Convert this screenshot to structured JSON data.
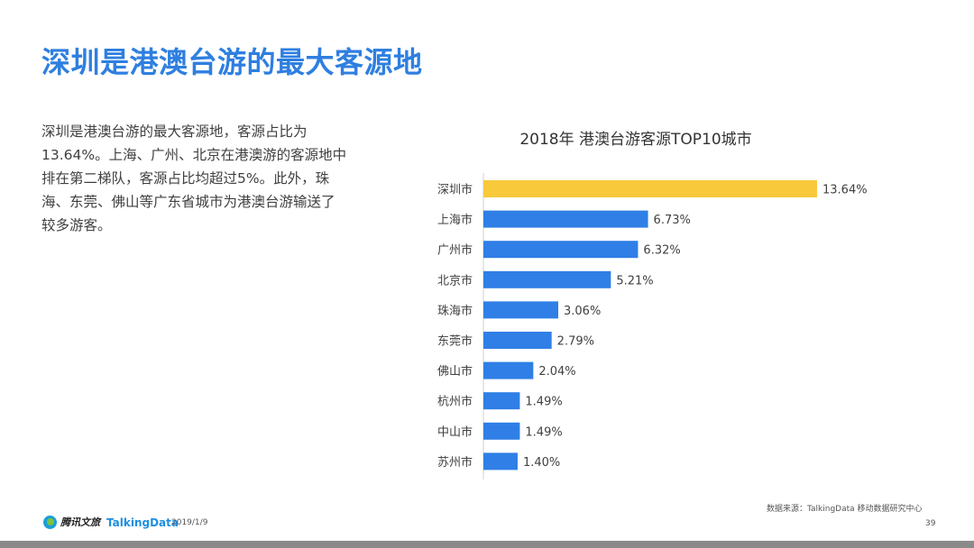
{
  "page": {
    "title": "深圳是港澳台游的最大客源地",
    "body": "深圳是港澳台游的最大客源地，客源占比为13.64%。上海、广州、北京在港澳游的客源地中排在第二梯队，客源占比均超过5%。此外，珠海、东莞、佛山等广东省城市为港澳台游输送了较多游客。",
    "source": "数据来源：TalkingData  移动数据研究中心",
    "page_number": "39",
    "date": "2019/1/9",
    "logo1": "腾讯文旅",
    "logo2": "TalkingData"
  },
  "colors": {
    "highlight": "#F9C93C",
    "bar": "#2F7FE6",
    "title": "#2E7FE0"
  },
  "chart_data": {
    "type": "bar",
    "orientation": "horizontal",
    "title": "2018年 港澳台游客源TOP10城市",
    "categories": [
      "深圳市",
      "上海市",
      "广州市",
      "北京市",
      "珠海市",
      "东莞市",
      "佛山市",
      "杭州市",
      "中山市",
      "苏州市"
    ],
    "values": [
      13.64,
      6.73,
      6.32,
      5.21,
      3.06,
      2.79,
      2.04,
      1.49,
      1.49,
      1.4
    ],
    "value_labels": [
      "13.64%",
      "6.73%",
      "6.32%",
      "5.21%",
      "3.06%",
      "2.79%",
      "2.04%",
      "1.49%",
      "1.49%",
      "1.40%"
    ],
    "highlight_index": 0,
    "xlim": [
      0,
      13.64
    ],
    "xlabel": "",
    "ylabel": ""
  }
}
